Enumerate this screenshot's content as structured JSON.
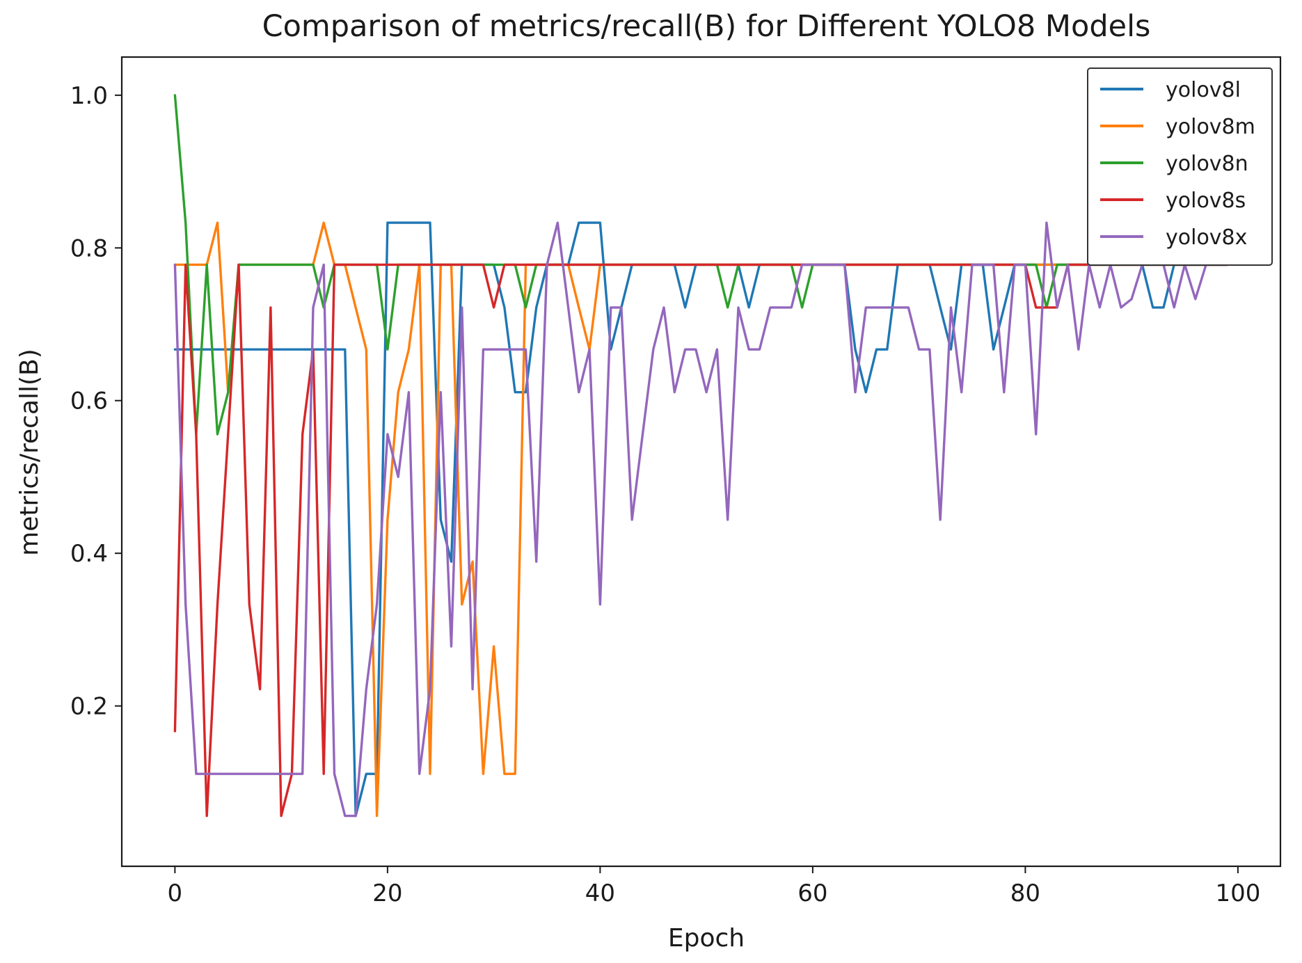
{
  "chart_data": {
    "type": "line",
    "title": "Comparison of metrics/recall(B) for Different YOLO8 Models",
    "xlabel": "Epoch",
    "ylabel": "metrics/recall(B)",
    "xlim": [
      -5,
      104
    ],
    "ylim": [
      -0.01,
      1.05
    ],
    "x_ticks": [
      0,
      20,
      40,
      60,
      80,
      100
    ],
    "y_ticks": [
      0.2,
      0.4,
      0.6,
      0.8,
      1.0
    ],
    "x_tick_labels": [
      "0",
      "20",
      "40",
      "60",
      "80",
      "100"
    ],
    "y_tick_labels": [
      "0.2",
      "0.4",
      "0.6",
      "0.8",
      "1.0"
    ],
    "grid": false,
    "legend_position": "top-right",
    "x": [
      0,
      1,
      2,
      3,
      4,
      5,
      6,
      7,
      8,
      9,
      10,
      11,
      12,
      13,
      14,
      15,
      16,
      17,
      18,
      19,
      20,
      21,
      22,
      23,
      24,
      25,
      26,
      27,
      28,
      29,
      30,
      31,
      32,
      33,
      34,
      35,
      36,
      37,
      38,
      39,
      40,
      41,
      42,
      43,
      44,
      45,
      46,
      47,
      48,
      49,
      50,
      51,
      52,
      53,
      54,
      55,
      56,
      57,
      58,
      59,
      60,
      61,
      62,
      63,
      64,
      65,
      66,
      67,
      68,
      69,
      70,
      71,
      72,
      73,
      74,
      75,
      76,
      77,
      78,
      79,
      80,
      81,
      82,
      83,
      84,
      85,
      86,
      87,
      88,
      89,
      90,
      91,
      92,
      93,
      94,
      95,
      96,
      97,
      98,
      99
    ],
    "series": [
      {
        "name": "yolov8l",
        "color": "#1f77b4",
        "values": [
          0.667,
          0.667,
          0.667,
          0.667,
          0.667,
          0.667,
          0.667,
          0.667,
          0.667,
          0.667,
          0.667,
          0.667,
          0.667,
          0.667,
          0.667,
          0.667,
          0.667,
          0.056,
          0.111,
          0.111,
          0.833,
          0.833,
          0.833,
          0.833,
          0.833,
          0.444,
          0.389,
          0.778,
          0.778,
          0.778,
          0.778,
          0.722,
          0.611,
          0.611,
          0.722,
          0.778,
          0.778,
          0.778,
          0.833,
          0.833,
          0.833,
          0.667,
          0.722,
          0.778,
          0.778,
          0.778,
          0.778,
          0.778,
          0.722,
          0.778,
          0.778,
          0.778,
          0.778,
          0.778,
          0.722,
          0.778,
          0.778,
          0.778,
          0.778,
          0.778,
          0.778,
          0.778,
          0.778,
          0.778,
          0.667,
          0.611,
          0.667,
          0.667,
          0.778,
          0.778,
          0.778,
          0.778,
          0.722,
          0.667,
          0.778,
          0.778,
          0.778,
          0.667,
          0.722,
          0.778,
          0.778,
          0.778,
          0.778,
          0.778,
          0.778,
          0.778,
          0.778,
          0.778,
          0.778,
          0.778,
          0.778,
          0.778,
          0.722,
          0.722,
          0.778,
          0.778,
          0.778,
          0.778,
          0.778,
          0.778
        ]
      },
      {
        "name": "yolov8m",
        "color": "#ff7f0e",
        "values": [
          0.778,
          0.778,
          0.778,
          0.778,
          0.833,
          0.611,
          0.778,
          0.778,
          0.778,
          0.778,
          0.778,
          0.778,
          0.778,
          0.778,
          0.833,
          0.778,
          0.778,
          0.722,
          0.667,
          0.056,
          0.444,
          0.611,
          0.667,
          0.778,
          0.111,
          0.778,
          0.778,
          0.333,
          0.389,
          0.111,
          0.278,
          0.111,
          0.111,
          0.778,
          0.778,
          0.778,
          0.778,
          0.778,
          0.722,
          0.667,
          0.778,
          0.778,
          0.778,
          0.778,
          0.778,
          0.778,
          0.778,
          0.778,
          0.778,
          0.778,
          0.778,
          0.778,
          0.778,
          0.778,
          0.778,
          0.778,
          0.778,
          0.778,
          0.778,
          0.778,
          0.778,
          0.778,
          0.778,
          0.778,
          0.778,
          0.778,
          0.778,
          0.778,
          0.778,
          0.778,
          0.778,
          0.778,
          0.778,
          0.778,
          0.778,
          0.778,
          0.778,
          0.778,
          0.778,
          0.778,
          0.778,
          0.778,
          0.778,
          0.778,
          0.778,
          0.778,
          0.778,
          0.778,
          0.778,
          0.778,
          0.778,
          0.778,
          0.778,
          0.778,
          0.778,
          0.778,
          0.778,
          0.778,
          0.778,
          0.778
        ]
      },
      {
        "name": "yolov8n",
        "color": "#2ca02c",
        "values": [
          1.0,
          0.833,
          0.556,
          0.778,
          0.556,
          0.611,
          0.778,
          0.778,
          0.778,
          0.778,
          0.778,
          0.778,
          0.778,
          0.778,
          0.722,
          0.778,
          0.778,
          0.778,
          0.778,
          0.778,
          0.667,
          0.778,
          0.778,
          0.778,
          0.778,
          0.778,
          0.778,
          0.778,
          0.778,
          0.778,
          0.778,
          0.778,
          0.778,
          0.722,
          0.778,
          0.778,
          0.778,
          0.778,
          0.778,
          0.778,
          0.778,
          0.778,
          0.778,
          0.778,
          0.778,
          0.778,
          0.778,
          0.778,
          0.778,
          0.778,
          0.778,
          0.778,
          0.722,
          0.778,
          0.778,
          0.778,
          0.778,
          0.778,
          0.778,
          0.722,
          0.778,
          0.778,
          0.778,
          0.778,
          0.778,
          0.778,
          0.778,
          0.778,
          0.778,
          0.778,
          0.778,
          0.778,
          0.778,
          0.778,
          0.778,
          0.778,
          0.778,
          0.778,
          0.778,
          0.778,
          0.778,
          0.778,
          0.722,
          0.778,
          0.778,
          0.778,
          0.778,
          0.778,
          0.778,
          0.778,
          0.778,
          0.778,
          0.778,
          0.778,
          0.778,
          0.778,
          0.778,
          0.778,
          0.778,
          0.778
        ]
      },
      {
        "name": "yolov8s",
        "color": "#d62728",
        "values": [
          0.167,
          0.778,
          0.556,
          0.056,
          0.333,
          0.556,
          0.778,
          0.333,
          0.222,
          0.722,
          0.056,
          0.111,
          0.556,
          0.667,
          0.111,
          0.778,
          0.778,
          0.778,
          0.778,
          0.778,
          0.778,
          0.778,
          0.778,
          0.778,
          0.778,
          0.778,
          0.778,
          0.778,
          0.778,
          0.778,
          0.722,
          0.778,
          0.778,
          0.778,
          0.778,
          0.778,
          0.778,
          0.778,
          0.778,
          0.778,
          0.778,
          0.778,
          0.778,
          0.778,
          0.778,
          0.778,
          0.778,
          0.778,
          0.778,
          0.778,
          0.778,
          0.778,
          0.778,
          0.778,
          0.778,
          0.778,
          0.778,
          0.778,
          0.778,
          0.778,
          0.778,
          0.778,
          0.778,
          0.778,
          0.778,
          0.778,
          0.778,
          0.778,
          0.778,
          0.778,
          0.778,
          0.778,
          0.778,
          0.778,
          0.778,
          0.778,
          0.778,
          0.778,
          0.778,
          0.778,
          0.778,
          0.722,
          0.722,
          0.722,
          0.778,
          0.778,
          0.778,
          0.778,
          0.778,
          0.778,
          0.778,
          0.778,
          0.778,
          0.778,
          0.778,
          0.778,
          0.778,
          0.778,
          0.778,
          0.778
        ]
      },
      {
        "name": "yolov8x",
        "color": "#9467bd",
        "values": [
          0.778,
          0.333,
          0.111,
          0.111,
          0.111,
          0.111,
          0.111,
          0.111,
          0.111,
          0.111,
          0.111,
          0.111,
          0.111,
          0.722,
          0.778,
          0.111,
          0.056,
          0.056,
          0.222,
          0.333,
          0.556,
          0.5,
          0.611,
          0.111,
          0.222,
          0.611,
          0.278,
          0.722,
          0.222,
          0.667,
          0.667,
          0.667,
          0.667,
          0.667,
          0.389,
          0.778,
          0.833,
          0.722,
          0.611,
          0.667,
          0.333,
          0.722,
          0.722,
          0.444,
          0.556,
          0.667,
          0.722,
          0.611,
          0.667,
          0.667,
          0.611,
          0.667,
          0.444,
          0.722,
          0.667,
          0.667,
          0.722,
          0.722,
          0.722,
          0.778,
          0.778,
          0.778,
          0.778,
          0.778,
          0.611,
          0.722,
          0.722,
          0.722,
          0.722,
          0.722,
          0.667,
          0.667,
          0.444,
          0.722,
          0.611,
          0.778,
          0.778,
          0.778,
          0.611,
          0.778,
          0.778,
          0.556,
          0.833,
          0.722,
          0.778,
          0.667,
          0.778,
          0.722,
          0.778,
          0.722,
          0.733,
          0.778,
          0.778,
          0.778,
          0.722,
          0.778,
          0.733,
          0.778,
          0.778,
          0.778
        ]
      }
    ]
  }
}
